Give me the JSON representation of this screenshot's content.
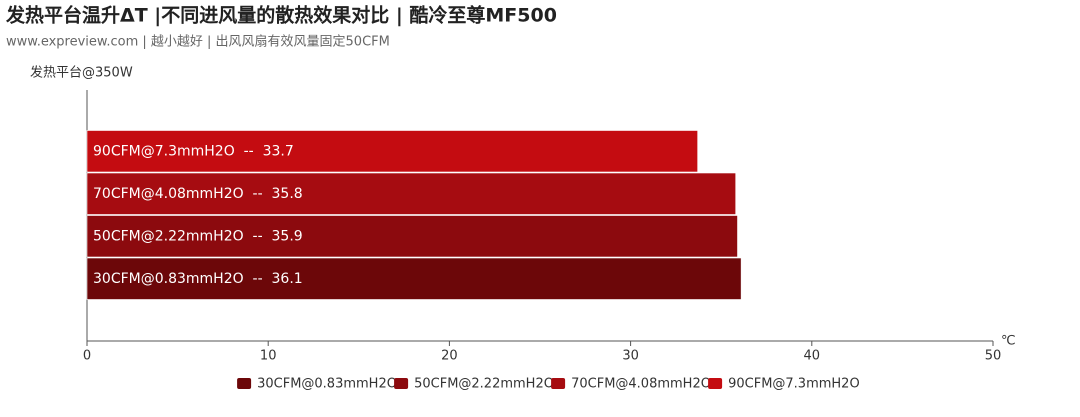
{
  "chart_data": {
    "type": "bar",
    "orientation": "horizontal",
    "title": "发热平台温升ΔT |不同进风量的散热效果对比 | 酷冷至尊MF500",
    "subtitle": "www.expreview.com | 越小越好 | 出风风扇有效风量固定50CFM",
    "categories": [
      "发热平台@350W"
    ],
    "x_unit": "℃",
    "xlim": [
      0,
      50
    ],
    "xticks": [
      0,
      10,
      20,
      30,
      40,
      50
    ],
    "legend": "bottom",
    "series": [
      {
        "name": "30CFM@0.83mmH2O",
        "color": "#6c0709",
        "values": [
          36.1
        ],
        "value_labels": [
          "30CFM@0.83mmH2O  --  36.1"
        ]
      },
      {
        "name": "50CFM@2.22mmH2O",
        "color": "#8c0a0e",
        "values": [
          35.9
        ],
        "value_labels": [
          "50CFM@2.22mmH2O  --  35.9"
        ]
      },
      {
        "name": "70CFM@4.08mmH2O",
        "color": "#a60c11",
        "values": [
          35.8
        ],
        "value_labels": [
          "70CFM@4.08mmH2O  --  35.8"
        ]
      },
      {
        "name": "90CFM@7.3mmH2O",
        "color": "#c40c11",
        "values": [
          33.7
        ],
        "value_labels": [
          "90CFM@7.3mmH2O  --  33.7"
        ]
      }
    ]
  }
}
